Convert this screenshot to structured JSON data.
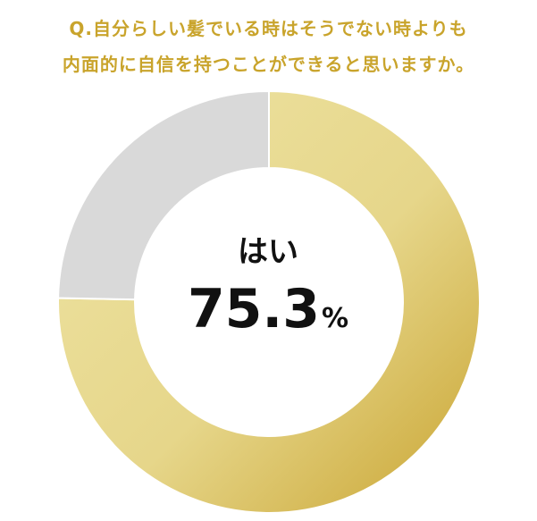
{
  "question": {
    "line1": "Q.自分らしい髪でいる時はそうでない時よりも",
    "line2": "内面的に自信を持つことができると思いますか。"
  },
  "colors": {
    "accent": "#c9a42c",
    "yes_light": "#eadd8f",
    "yes_dark": "#caa637",
    "other": "#d9d9d9"
  },
  "chart_data": {
    "type": "pie",
    "style": "donut",
    "slices": [
      {
        "label": "はい",
        "value": 75.3
      },
      {
        "value": 24.7
      }
    ],
    "center_label": "はい",
    "center_value": "75.3",
    "center_unit": "%"
  }
}
